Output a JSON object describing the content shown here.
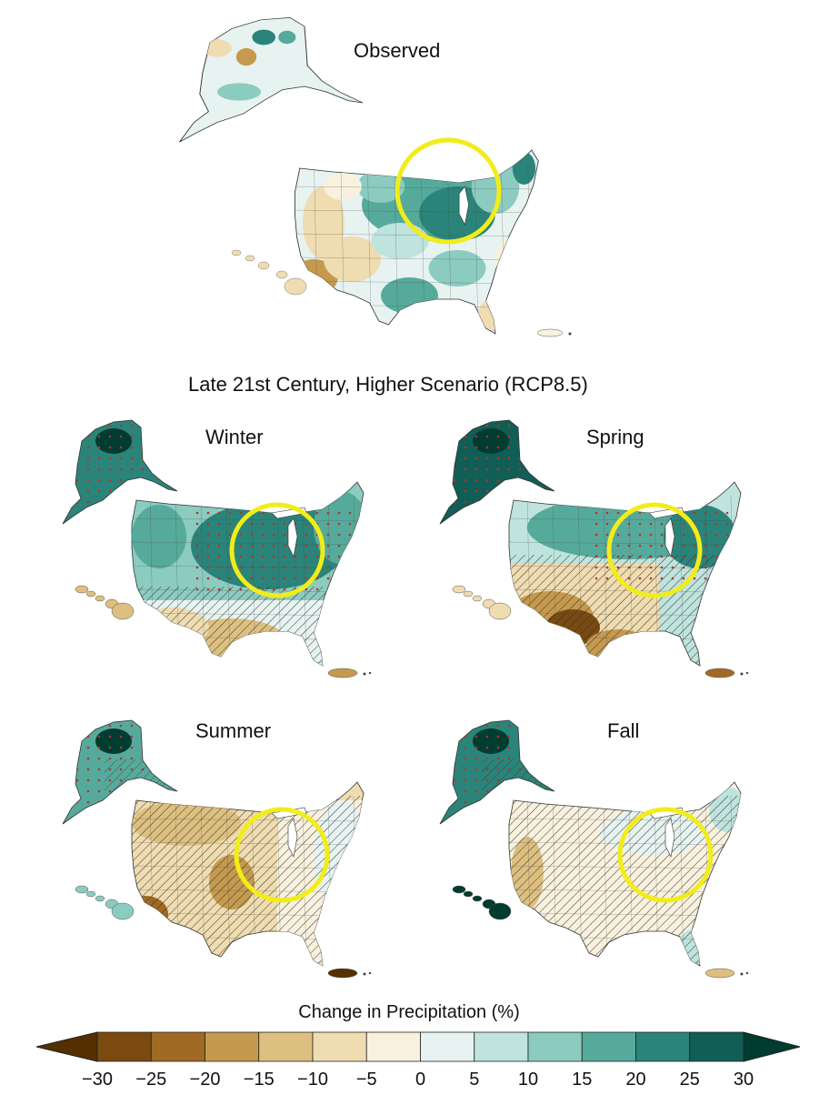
{
  "panels": {
    "observed": {
      "title": "Observed",
      "tint": "mixed"
    },
    "winter": {
      "title": "Winter",
      "tint": "wet"
    },
    "spring": {
      "title": "Spring",
      "tint": "wet-north-dry-south"
    },
    "summer": {
      "title": "Summer",
      "tint": "dry"
    },
    "fall": {
      "title": "Fall",
      "tint": "near-neutral"
    }
  },
  "scenario_heading": "Late 21st Century, Higher Scenario (RCP8.5)",
  "highlight_color": "#f2ec1a",
  "colorbar": {
    "title": "Change in Precipitation (%)",
    "ticks": [
      "−30",
      "−25",
      "−20",
      "−15",
      "−10",
      "−5",
      "0",
      "5",
      "10",
      "15",
      "20",
      "25",
      "30"
    ],
    "colors": [
      "#7a4a10",
      "#a06a24",
      "#c59a4e",
      "#ddc07f",
      "#efdcb0",
      "#f9f1de",
      "#e6f3f1",
      "#bfe3dd",
      "#8ccbc0",
      "#56aa9c",
      "#2a847a",
      "#105e55"
    ],
    "end_colors": [
      "#543000",
      "#003c30"
    ]
  }
}
